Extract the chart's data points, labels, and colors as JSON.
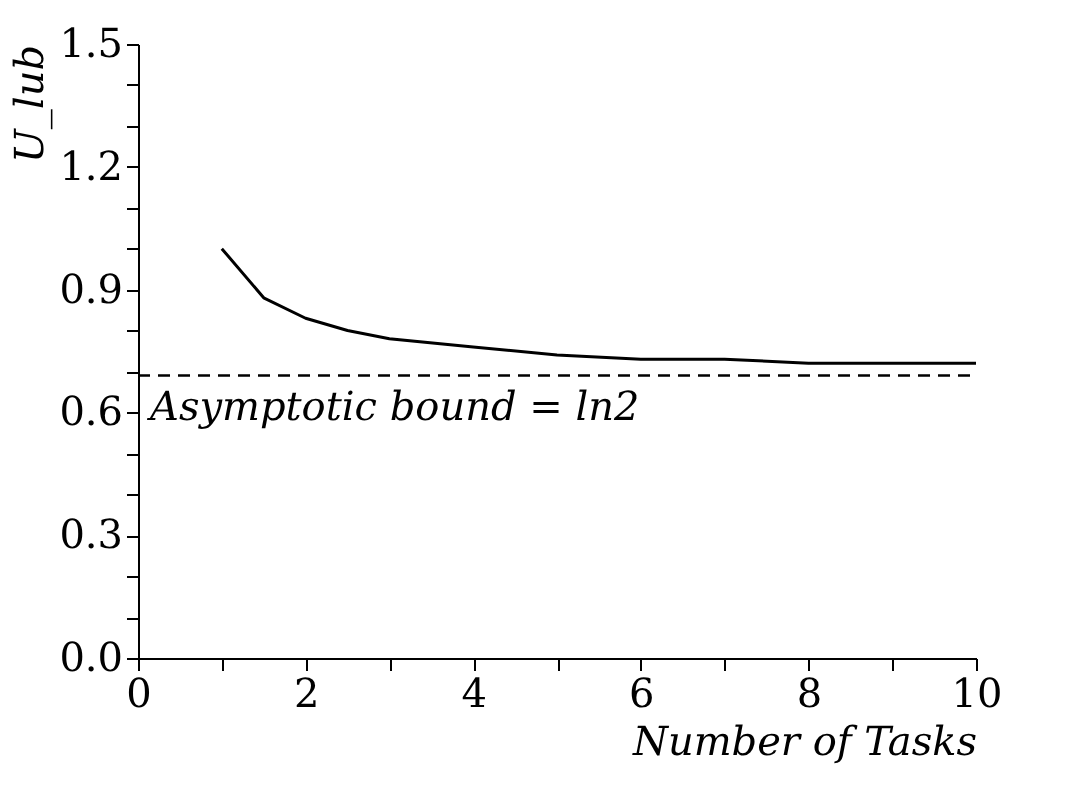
{
  "chart_data": {
    "type": "line",
    "xlabel": "Number of Tasks",
    "ylabel": "U_lub",
    "x": [
      1,
      1.5,
      2,
      2.5,
      3,
      4,
      5,
      6,
      7,
      8,
      9,
      10
    ],
    "series": [
      {
        "color": "#000000",
        "values": [
          1.0,
          0.88,
          0.83,
          0.8,
          0.78,
          0.76,
          0.74,
          0.73,
          0.73,
          0.72,
          0.72,
          0.72
        ]
      }
    ],
    "xlim": [
      0,
      10
    ],
    "xticks": [
      0,
      {
        "value": 1,
        "label": null
      },
      2,
      {
        "value": 3,
        "label": null
      },
      4,
      {
        "value": 5,
        "label": null
      },
      6,
      {
        "value": 7,
        "label": null
      },
      8,
      {
        "value": 9,
        "label": null
      },
      10
    ],
    "ylim": [
      0,
      1.5
    ],
    "yticks": [
      {
        "value": 0,
        "label": "0.0"
      },
      {
        "value": 0.1,
        "label": null
      },
      {
        "value": 0.2,
        "label": null
      },
      {
        "value": 0.3,
        "label": "0.3"
      },
      {
        "value": 0.4,
        "label": null
      },
      {
        "value": 0.5,
        "label": null
      },
      {
        "value": 0.6,
        "label": "0.6"
      },
      {
        "value": 0.7,
        "label": null
      },
      {
        "value": 0.8,
        "label": null
      },
      {
        "value": 0.9,
        "label": "0.9"
      },
      {
        "value": 1.0,
        "label": null
      },
      {
        "value": 1.1,
        "label": null
      },
      {
        "value": 1.2,
        "label": "1.2"
      },
      {
        "value": 1.3,
        "label": null
      },
      {
        "value": 1.4,
        "label": null
      },
      {
        "value": 1.5,
        "label": "1.5"
      }
    ],
    "ref_lines": [
      {
        "axis": "y",
        "value": 0.69,
        "label": "Asymptotic bound = ln2",
        "line_style": "dashed",
        "color": "#000000"
      }
    ],
    "grid": false,
    "marker": "none",
    "line_style": "solid"
  }
}
